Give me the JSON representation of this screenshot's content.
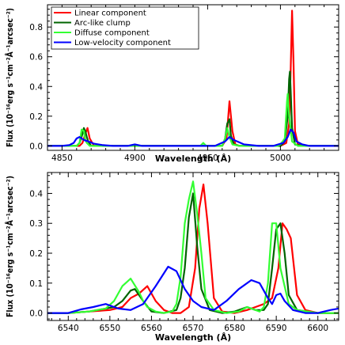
{
  "chart_data": [
    {
      "type": "line",
      "xlabel": "Wavelength (Å)",
      "ylabel": "Flux (10⁻¹⁶erg s⁻¹cm⁻²Å⁻¹arcsec⁻²)",
      "xlim": [
        4840,
        5040
      ],
      "ylim": [
        -0.03,
        0.95
      ],
      "xticks": [
        4850,
        4900,
        4950,
        5000
      ],
      "yticks": [
        0.0,
        0.2,
        0.4,
        0.6,
        0.8
      ],
      "ytick_labels": [
        "0.0",
        "0.2",
        "0.4",
        "0.6",
        "0.8"
      ],
      "grid": false,
      "legend_position": "top-left",
      "series": [
        {
          "name": "Linear component",
          "color": "#ff0000",
          "x": [
            4840,
            4855,
            4862,
            4864,
            4866,
            4867.5,
            4869,
            4872,
            4880,
            4955,
            4960,
            4963,
            4965,
            4967,
            4969,
            4972,
            4980,
            4995,
            5000,
            5004,
            5006,
            5007,
            5008,
            5009,
            5010,
            5012,
            5018,
            5040
          ],
          "y": [
            0,
            0,
            0,
            0.02,
            0.08,
            0.12,
            0.05,
            0,
            0,
            0,
            0,
            0.05,
            0.3,
            0.1,
            0.01,
            0,
            0,
            0,
            0,
            0.02,
            0.15,
            0.5,
            0.91,
            0.55,
            0.1,
            0.01,
            0,
            0
          ]
        },
        {
          "name": "Arc-like clump",
          "color": "#006400",
          "x": [
            4840,
            4855,
            4860,
            4862,
            4864,
            4865,
            4866,
            4867,
            4868,
            4870,
            4880,
            4955,
            4960,
            4962,
            4963.5,
            4965,
            4966,
            4968,
            4972,
            4980,
            4995,
            5000,
            5003,
            5005,
            5006,
            5006.5,
            5007,
            5008,
            5010,
            5015,
            5040
          ],
          "y": [
            0,
            0,
            0,
            0.02,
            0.08,
            0.12,
            0.1,
            0.06,
            0.03,
            0,
            0,
            0,
            0,
            0.05,
            0.15,
            0.18,
            0.07,
            0.01,
            0,
            0,
            0,
            0,
            0.03,
            0.2,
            0.45,
            0.5,
            0.38,
            0.12,
            0.01,
            0,
            0
          ]
        },
        {
          "name": "Diffuse component",
          "color": "#33ff33",
          "x": [
            4840,
            4855,
            4860,
            4862,
            4863.5,
            4865,
            4866,
            4867,
            4869,
            4880,
            4945,
            4947,
            4949,
            4955,
            4960,
            4962,
            4963.5,
            4965,
            4967,
            4972,
            4980,
            4990,
            4998,
            5000,
            5003,
            5004.5,
            5005,
            5006,
            5008,
            5012,
            5040
          ],
          "y": [
            0,
            0,
            0,
            0.02,
            0.11,
            0.1,
            0.04,
            0.02,
            0,
            0,
            0,
            0.02,
            0,
            0,
            0,
            0.05,
            0.12,
            0.06,
            0.01,
            0,
            0,
            0,
            0,
            0.01,
            0.05,
            0.3,
            0.35,
            0.2,
            0.03,
            0,
            0
          ]
        },
        {
          "name": "Low-velocity component",
          "color": "#0000ff",
          "x": [
            4840,
            4850,
            4855,
            4858,
            4860,
            4862,
            4865,
            4868,
            4872,
            4878,
            4885,
            4895,
            4900,
            4905,
            4915,
            4930,
            4945,
            4955,
            4962,
            4965,
            4968,
            4975,
            4985,
            4995,
            5002,
            5005,
            5007,
            5009,
            5011,
            5015,
            5020,
            5030,
            5040
          ],
          "y": [
            0,
            0,
            0.005,
            0.02,
            0.05,
            0.06,
            0.04,
            0.03,
            0.015,
            0.005,
            0,
            0,
            0.01,
            0,
            0,
            0,
            0,
            0,
            0.03,
            0.06,
            0.04,
            0.01,
            0,
            0,
            0.02,
            0.06,
            0.11,
            0.09,
            0.03,
            0.01,
            0,
            0,
            0
          ]
        }
      ]
    },
    {
      "type": "line",
      "xlabel": "Wavelength (Å)",
      "ylabel": "Flux (10⁻¹⁶erg s⁻¹cm⁻²Å⁻¹arcsec⁻²)",
      "xlim": [
        6535,
        6605
      ],
      "ylim": [
        -0.025,
        0.47
      ],
      "xticks": [
        6540,
        6550,
        6560,
        6570,
        6580,
        6590,
        6600
      ],
      "yticks": [
        0.0,
        0.1,
        0.2,
        0.3,
        0.4
      ],
      "ytick_labels": [
        "0.0",
        "0.1",
        "0.2",
        "0.3",
        "0.4"
      ],
      "grid": false,
      "series": [
        {
          "name": "Linear component",
          "color": "#ff0000",
          "x": [
            6535,
            6540,
            6545,
            6550,
            6553,
            6555,
            6557,
            6559,
            6561,
            6563,
            6565,
            6567,
            6569,
            6570.5,
            6571.5,
            6572.5,
            6573.5,
            6575,
            6577,
            6580,
            6583,
            6585,
            6587,
            6589,
            6590.5,
            6591.5,
            6592.5,
            6593.5,
            6595,
            6597,
            6600,
            6605
          ],
          "y": [
            0,
            0,
            0.005,
            0.01,
            0.02,
            0.05,
            0.065,
            0.09,
            0.04,
            0.01,
            0,
            0,
            0.02,
            0.15,
            0.35,
            0.43,
            0.3,
            0.05,
            0.005,
            0,
            0.01,
            0.02,
            0.03,
            0.05,
            0.15,
            0.3,
            0.28,
            0.25,
            0.06,
            0.01,
            0,
            0
          ]
        },
        {
          "name": "Arc-like clump",
          "color": "#006400",
          "x": [
            6535,
            6540,
            6545,
            6549,
            6551,
            6553,
            6555,
            6556,
            6557,
            6558,
            6560,
            6563,
            6566,
            6567,
            6568,
            6569,
            6570,
            6571,
            6572,
            6574,
            6577,
            6580,
            6583,
            6585,
            6587,
            6588,
            6589,
            6590,
            6591,
            6592,
            6593,
            6595,
            6600,
            6605
          ],
          "y": [
            0,
            0,
            0.005,
            0.015,
            0.02,
            0.04,
            0.075,
            0.08,
            0.06,
            0.04,
            0.005,
            0,
            0.01,
            0.05,
            0.15,
            0.32,
            0.4,
            0.22,
            0.08,
            0.01,
            0,
            0.005,
            0.02,
            0.01,
            0.01,
            0.03,
            0.15,
            0.28,
            0.3,
            0.2,
            0.06,
            0.01,
            0,
            0
          ]
        },
        {
          "name": "Diffuse component",
          "color": "#33ff33",
          "x": [
            6535,
            6540,
            6545,
            6549,
            6551,
            6553,
            6555,
            6557,
            6558,
            6559,
            6561,
            6563,
            6565,
            6566,
            6567,
            6568,
            6569,
            6570,
            6571,
            6572,
            6573,
            6575,
            6578,
            6581,
            6583,
            6585,
            6586,
            6587,
            6588,
            6589,
            6590,
            6591,
            6593,
            6595,
            6600,
            6605
          ],
          "y": [
            0,
            0,
            0.005,
            0.015,
            0.04,
            0.09,
            0.115,
            0.07,
            0.04,
            0.02,
            0.005,
            0,
            0.005,
            0.03,
            0.12,
            0.3,
            0.38,
            0.44,
            0.33,
            0.2,
            0.05,
            0.01,
            0,
            0.005,
            0.02,
            0.01,
            0.005,
            0.02,
            0.1,
            0.3,
            0.3,
            0.15,
            0.03,
            0.01,
            0,
            0
          ]
        },
        {
          "name": "Low-velocity component",
          "color": "#0000ff",
          "x": [
            6535,
            6540,
            6543,
            6546,
            6549,
            6552,
            6555,
            6558,
            6561,
            6564,
            6566,
            6568,
            6570,
            6572,
            6575,
            6578,
            6581,
            6584,
            6586,
            6588,
            6589,
            6590,
            6591,
            6592,
            6594,
            6597,
            6600,
            6603,
            6605
          ],
          "y": [
            0,
            0,
            0.012,
            0.02,
            0.03,
            0.015,
            0.01,
            0.03,
            0.09,
            0.155,
            0.14,
            0.08,
            0.04,
            0.02,
            0.01,
            0.04,
            0.08,
            0.11,
            0.1,
            0.05,
            0.03,
            0.06,
            0.065,
            0.04,
            0.01,
            0,
            0,
            0.01,
            0.015
          ]
        }
      ]
    }
  ]
}
